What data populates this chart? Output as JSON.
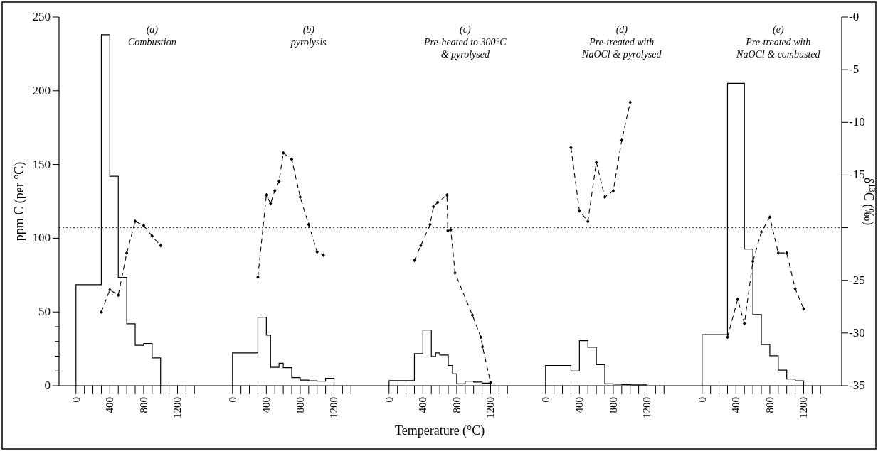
{
  "chart_data": [
    {
      "type": "histogram",
      "title": "(a)",
      "subtitle": "Combustion",
      "ylabel": "ppm C (per °C)",
      "xlim": [
        -200,
        1650
      ],
      "ylim": [
        0,
        250
      ],
      "y2lim": [
        -35,
        0
      ],
      "xticks": [
        0,
        {
          "value": 100,
          "label": null
        },
        {
          "value": 200,
          "label": null
        },
        {
          "value": 300,
          "label": null
        },
        400,
        {
          "value": 500,
          "label": null
        },
        {
          "value": 600,
          "label": null
        },
        {
          "value": 700,
          "label": null
        },
        800,
        {
          "value": 900,
          "label": null
        },
        {
          "value": 1000,
          "label": null
        },
        {
          "value": 1100,
          "label": null
        },
        1200,
        {
          "value": 1300,
          "label": null
        },
        {
          "value": 1400,
          "label": null
        }
      ],
      "yticks": [
        0,
        {
          "value": 10,
          "label": null
        },
        {
          "value": 20,
          "label": null
        },
        {
          "value": 30,
          "label": null
        },
        {
          "value": 40,
          "label": null
        },
        50,
        100,
        150,
        200,
        250
      ],
      "series": [
        {
          "type": "histogram",
          "color": "#000000",
          "bins": [
            0,
            300,
            400,
            500,
            600,
            700,
            800,
            900,
            1000
          ],
          "values": [
            68.5,
            238,
            142,
            73.4,
            42,
            27.4,
            28.6,
            18.8
          ]
        },
        {
          "type": "line",
          "axis": "y2",
          "color": "#000000",
          "line_style": "dashed",
          "marker": "diamond",
          "x": [
            300,
            400,
            500,
            600,
            700,
            800,
            900,
            1000
          ],
          "values": [
            -28.0,
            -25.9,
            -26.4,
            -22.4,
            -19.4,
            -19.8,
            -20.8,
            -21.7
          ]
        }
      ],
      "ref_lines": [
        {
          "axis": "y2",
          "value": -20,
          "line_style": "dotted"
        }
      ]
    },
    {
      "type": "histogram",
      "title": "(b)",
      "subtitle": "pyrolysis",
      "tick_labels": "x",
      "xlim": [
        -200,
        1650
      ],
      "ylim": [
        0,
        250
      ],
      "y2lim": [
        -35,
        0
      ],
      "xticks": [
        0,
        {
          "value": 100,
          "label": null
        },
        {
          "value": 200,
          "label": null
        },
        {
          "value": 300,
          "label": null
        },
        400,
        {
          "value": 500,
          "label": null
        },
        {
          "value": 600,
          "label": null
        },
        {
          "value": 700,
          "label": null
        },
        800,
        {
          "value": 900,
          "label": null
        },
        {
          "value": 1000,
          "label": null
        },
        {
          "value": 1100,
          "label": null
        },
        1200,
        {
          "value": 1300,
          "label": null
        },
        {
          "value": 1400,
          "label": null
        }
      ],
      "series": [
        {
          "type": "histogram",
          "color": "#000000",
          "bins": [
            0,
            300,
            400,
            450,
            550,
            600,
            700,
            800,
            900,
            1000,
            1100,
            1200
          ],
          "values": [
            22.2,
            46.4,
            34.3,
            12.5,
            15.2,
            12.2,
            5.5,
            3.8,
            3.3,
            3.0,
            5.0
          ]
        },
        {
          "type": "line",
          "axis": "y2",
          "color": "#000000",
          "line_style": "dashed",
          "marker": "diamond",
          "x": [
            300,
            400,
            450,
            500,
            550,
            600,
            700,
            800,
            900,
            1000,
            1075
          ],
          "values": [
            -24.7,
            -16.9,
            -17.7,
            -16.5,
            -15.6,
            -12.9,
            -13.5,
            -17.1,
            -19.7,
            -22.3,
            -22.6
          ]
        }
      ],
      "ref_lines": [
        {
          "axis": "y2",
          "value": -20,
          "line_style": "dotted"
        }
      ]
    },
    {
      "type": "histogram",
      "title": "(c)",
      "subtitle": "Pre-heated to 300°C\n& pyrolysed",
      "xlabel": "Temperature (°C)",
      "tick_labels": "x",
      "xlim": [
        -200,
        1650
      ],
      "ylim": [
        0,
        250
      ],
      "y2lim": [
        -35,
        0
      ],
      "xticks": [
        0,
        {
          "value": 100,
          "label": null
        },
        {
          "value": 200,
          "label": null
        },
        {
          "value": 300,
          "label": null
        },
        400,
        {
          "value": 500,
          "label": null
        },
        {
          "value": 600,
          "label": null
        },
        {
          "value": 700,
          "label": null
        },
        800,
        {
          "value": 900,
          "label": null
        },
        {
          "value": 1000,
          "label": null
        },
        {
          "value": 1100,
          "label": null
        },
        1200,
        {
          "value": 1300,
          "label": null
        },
        {
          "value": 1400,
          "label": null
        }
      ],
      "series": [
        {
          "type": "histogram",
          "color": "#000000",
          "bins": [
            0,
            300,
            400,
            500,
            550,
            600,
            700,
            750,
            800,
            900,
            1000,
            1100,
            1200
          ],
          "values": [
            3.5,
            21.7,
            37.7,
            19.8,
            22.2,
            20.8,
            13.7,
            8.0,
            1.3,
            3.0,
            2.5,
            1.7
          ]
        },
        {
          "type": "line",
          "axis": "y2",
          "color": "#000000",
          "line_style": "dashed",
          "marker": "diamond",
          "x": [
            300,
            375,
            485,
            525,
            575,
            685,
            695,
            730,
            780,
            985,
            1085,
            1105,
            1200
          ],
          "values": [
            -23.1,
            -21.7,
            -19.7,
            -18.0,
            -17.6,
            -16.9,
            -20.3,
            -20.2,
            -24.3,
            -28.3,
            -30.4,
            -31.3,
            -34.7
          ]
        }
      ],
      "ref_lines": [
        {
          "axis": "y2",
          "value": -20,
          "line_style": "dotted"
        }
      ]
    },
    {
      "type": "histogram",
      "title": "(d)",
      "subtitle": "Pre-treated with\nNaOCl & pyrolysed",
      "tick_labels": "x",
      "xlim": [
        -200,
        1650
      ],
      "ylim": [
        0,
        250
      ],
      "y2lim": [
        -35,
        0
      ],
      "xticks": [
        0,
        {
          "value": 100,
          "label": null
        },
        {
          "value": 200,
          "label": null
        },
        {
          "value": 300,
          "label": null
        },
        400,
        {
          "value": 500,
          "label": null
        },
        {
          "value": 600,
          "label": null
        },
        {
          "value": 700,
          "label": null
        },
        800,
        {
          "value": 900,
          "label": null
        },
        {
          "value": 1000,
          "label": null
        },
        {
          "value": 1100,
          "label": null
        },
        1200,
        {
          "value": 1300,
          "label": null
        },
        {
          "value": 1400,
          "label": null
        }
      ],
      "series": [
        {
          "type": "histogram",
          "color": "#000000",
          "bins": [
            0,
            300,
            400,
            500,
            600,
            700,
            800,
            900,
            1000,
            1200
          ],
          "values": [
            13.7,
            10.0,
            30.5,
            26.0,
            14.2,
            1.3,
            1.0,
            0.8,
            0.5
          ]
        },
        {
          "type": "line",
          "axis": "y2",
          "color": "#000000",
          "line_style": "dashed",
          "marker": "diamond",
          "x": [
            300,
            400,
            500,
            600,
            700,
            800,
            900,
            1000
          ],
          "values": [
            -12.4,
            -18.4,
            -19.4,
            -13.8,
            -17.1,
            -16.5,
            -11.7,
            -8.1
          ]
        }
      ],
      "ref_lines": [
        {
          "axis": "y2",
          "value": -20,
          "line_style": "dotted"
        }
      ]
    },
    {
      "type": "histogram",
      "title": "(e)",
      "subtitle": "Pre-treated with\nNaOCl & combusted",
      "y2label": "δ$^{13}$C (‰)",
      "xlim": [
        -200,
        1650
      ],
      "ylim": [
        0,
        250
      ],
      "y2lim": [
        -35,
        0
      ],
      "xticks": [
        0,
        {
          "value": 100,
          "label": null
        },
        {
          "value": 200,
          "label": null
        },
        {
          "value": 300,
          "label": null
        },
        400,
        {
          "value": 500,
          "label": null
        },
        {
          "value": 600,
          "label": null
        },
        {
          "value": 700,
          "label": null
        },
        800,
        {
          "value": 900,
          "label": null
        },
        {
          "value": 1000,
          "label": null
        },
        {
          "value": 1100,
          "label": null
        },
        1200,
        {
          "value": 1300,
          "label": null
        },
        {
          "value": 1400,
          "label": null
        }
      ],
      "y2ticks": [
        {
          "value": 0,
          "label": "-0"
        },
        -5,
        -10,
        -15,
        {
          "value": -20,
          "label": null
        },
        -25,
        -30,
        -35
      ],
      "series": [
        {
          "type": "histogram",
          "color": "#000000",
          "bins": [
            0,
            300,
            500,
            600,
            700,
            800,
            900,
            1000,
            1100,
            1200
          ],
          "values": [
            34.6,
            205,
            92.7,
            48.2,
            27.9,
            20.3,
            10.5,
            4.5,
            3.3
          ]
        },
        {
          "type": "line",
          "axis": "y2",
          "color": "#000000",
          "line_style": "dashed",
          "marker": "diamond",
          "x": [
            300,
            420,
            500,
            600,
            700,
            800,
            900,
            1000,
            1100,
            1200
          ],
          "values": [
            -30.4,
            -26.8,
            -29.1,
            -23.2,
            -20.4,
            -19.0,
            -22.4,
            -22.4,
            -25.8,
            -27.7
          ]
        }
      ],
      "ref_lines": [
        {
          "axis": "y2",
          "value": -20,
          "line_style": "dotted"
        }
      ]
    }
  ]
}
